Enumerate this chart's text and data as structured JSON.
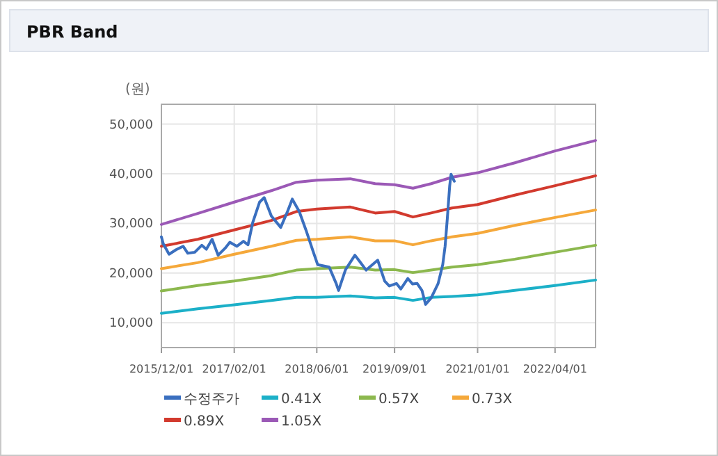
{
  "chart_data": {
    "type": "line",
    "title": "PBR Band",
    "ylabel": "(원)",
    "x": [
      "2015-12-01",
      "2016-07-01",
      "2017-02-01",
      "2017-09-07",
      "2018-02-01",
      "2018-06-01",
      "2018-12-15",
      "2019-05-10",
      "2019-09-01",
      "2019-12-18",
      "2020-04-03",
      "2020-08-03",
      "2021-01-01",
      "2021-08-07",
      "2022-04-01",
      "2022-11-25"
    ],
    "xlim": [
      "2015-12-01",
      "2022-11-25"
    ],
    "xticks": [
      {
        "value": "2015-12-01",
        "label": "2015/12/01"
      },
      {
        "value": "2017-02-01",
        "label": "2017/02/01"
      },
      {
        "value": "2018-06-01",
        "label": "2018/06/01"
      },
      {
        "value": "2019-09-01",
        "label": "2019/09/01"
      },
      {
        "value": "2021-01-01",
        "label": "2021/01/01"
      },
      {
        "value": "2022-04-01",
        "label": "2022/04/01"
      }
    ],
    "ylim": [
      5000,
      54000
    ],
    "yticks": [
      {
        "value": 10000,
        "label": "10,000"
      },
      {
        "value": 20000,
        "label": "20,000"
      },
      {
        "value": 30000,
        "label": "30,000"
      },
      {
        "value": 40000,
        "label": "40,000"
      },
      {
        "value": 50000,
        "label": "50,000"
      }
    ],
    "grid": true,
    "legend": "bottom",
    "series": [
      {
        "name": "수정주가",
        "color": "#3a6fbf",
        "x": [
          "2015-12-01",
          "2015-12-12",
          "2016-01-15",
          "2016-02-25",
          "2016-04-07",
          "2016-05-04",
          "2016-06-14",
          "2016-07-25",
          "2016-08-21",
          "2016-09-24",
          "2016-10-29",
          "2016-12-09",
          "2017-01-06",
          "2017-02-16",
          "2017-03-27",
          "2017-04-23",
          "2017-05-20",
          "2017-06-30",
          "2017-07-27",
          "2017-09-07",
          "2017-11-01",
          "2017-12-11",
          "2018-01-08",
          "2018-02-18",
          "2018-03-29",
          "2018-05-09",
          "2018-06-06",
          "2018-08-13",
          "2018-09-23",
          "2018-10-07",
          "2018-11-17",
          "2019-01-11",
          "2019-02-07",
          "2019-03-18",
          "2019-05-25",
          "2019-07-05",
          "2019-08-01",
          "2019-09-12",
          "2019-10-08",
          "2019-11-18",
          "2019-12-16",
          "2020-01-12",
          "2020-02-09",
          "2020-03-01",
          "2020-04-03",
          "2020-05-14",
          "2020-06-10",
          "2020-06-24",
          "2020-07-07",
          "2020-07-21",
          "2020-07-29",
          "2020-08-17"
        ],
        "values": [
          27300,
          25900,
          23800,
          24700,
          25400,
          24000,
          24200,
          25600,
          24800,
          26800,
          23600,
          25000,
          26200,
          25400,
          26400,
          25700,
          30100,
          34300,
          35200,
          31500,
          29200,
          32400,
          34900,
          32400,
          28700,
          24500,
          21700,
          21200,
          17900,
          16500,
          20700,
          23600,
          22400,
          20600,
          22600,
          18400,
          17400,
          17900,
          16800,
          18900,
          17800,
          17900,
          16500,
          13700,
          15000,
          17900,
          21700,
          25400,
          31000,
          37600,
          39900,
          38500
        ]
      },
      {
        "name": "0.41X",
        "color": "#1cb0c8",
        "values": [
          11900,
          12800,
          13600,
          14500,
          15100,
          15100,
          15400,
          15000,
          15100,
          14500,
          15100,
          15300,
          15600,
          16500,
          17500,
          18600
        ]
      },
      {
        "name": "0.57X",
        "color": "#8cb84e",
        "values": [
          16400,
          17500,
          18400,
          19500,
          20600,
          20900,
          21200,
          20600,
          20700,
          20100,
          20600,
          21200,
          21700,
          22800,
          24200,
          25600
        ]
      },
      {
        "name": "0.73X",
        "color": "#f5a83a",
        "values": [
          20900,
          22100,
          23800,
          25400,
          26600,
          26800,
          27300,
          26500,
          26500,
          25700,
          26500,
          27300,
          28000,
          29600,
          31200,
          32700
        ]
      },
      {
        "name": "0.89X",
        "color": "#d23a2e",
        "values": [
          25400,
          26800,
          28700,
          30600,
          32400,
          32900,
          33300,
          32100,
          32400,
          31300,
          32100,
          33100,
          33800,
          35700,
          37600,
          39600
        ]
      },
      {
        "name": "1.05X",
        "color": "#9b59b6",
        "values": [
          29800,
          32000,
          34300,
          36600,
          38300,
          38700,
          39000,
          38000,
          37800,
          37100,
          38000,
          39300,
          40200,
          42200,
          44600,
          46700
        ]
      }
    ]
  }
}
